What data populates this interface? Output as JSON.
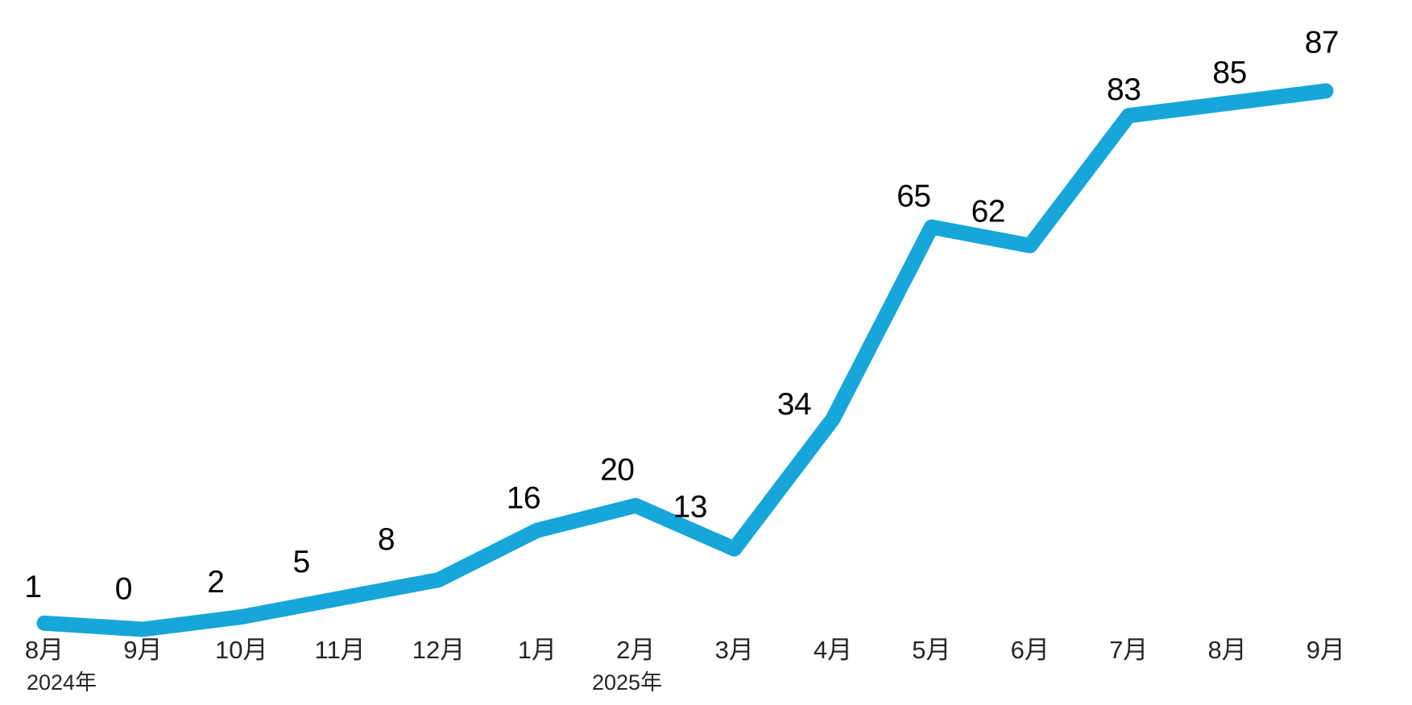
{
  "chart_data": {
    "type": "line",
    "title": "",
    "categories": [
      "8月",
      "9月",
      "10月",
      "11月",
      "12月",
      "1月",
      "2月",
      "3月",
      "4月",
      "5月",
      "6月",
      "7月",
      "8月",
      "9月"
    ],
    "values": [
      1,
      0,
      2,
      5,
      8,
      16,
      20,
      13,
      34,
      65,
      62,
      83,
      85,
      87
    ],
    "data_labels": [
      "1",
      "0",
      "2",
      "5",
      "8",
      "16",
      "20",
      "13",
      "34",
      "65",
      "62",
      "83",
      "85",
      "87"
    ],
    "year_labels": [
      {
        "text": "2024年",
        "category_index": 0
      },
      {
        "text": "2025年",
        "category_index": 6
      }
    ],
    "line_color": "#16a6da",
    "value_label_color": "#000000",
    "axis_label_color": "#262626",
    "background_color": "#ffffff",
    "legend_position": "none",
    "gridlines": false,
    "value_axis_visible": false,
    "category_axis_line_visible": false,
    "ylim": [
      0,
      100
    ]
  }
}
